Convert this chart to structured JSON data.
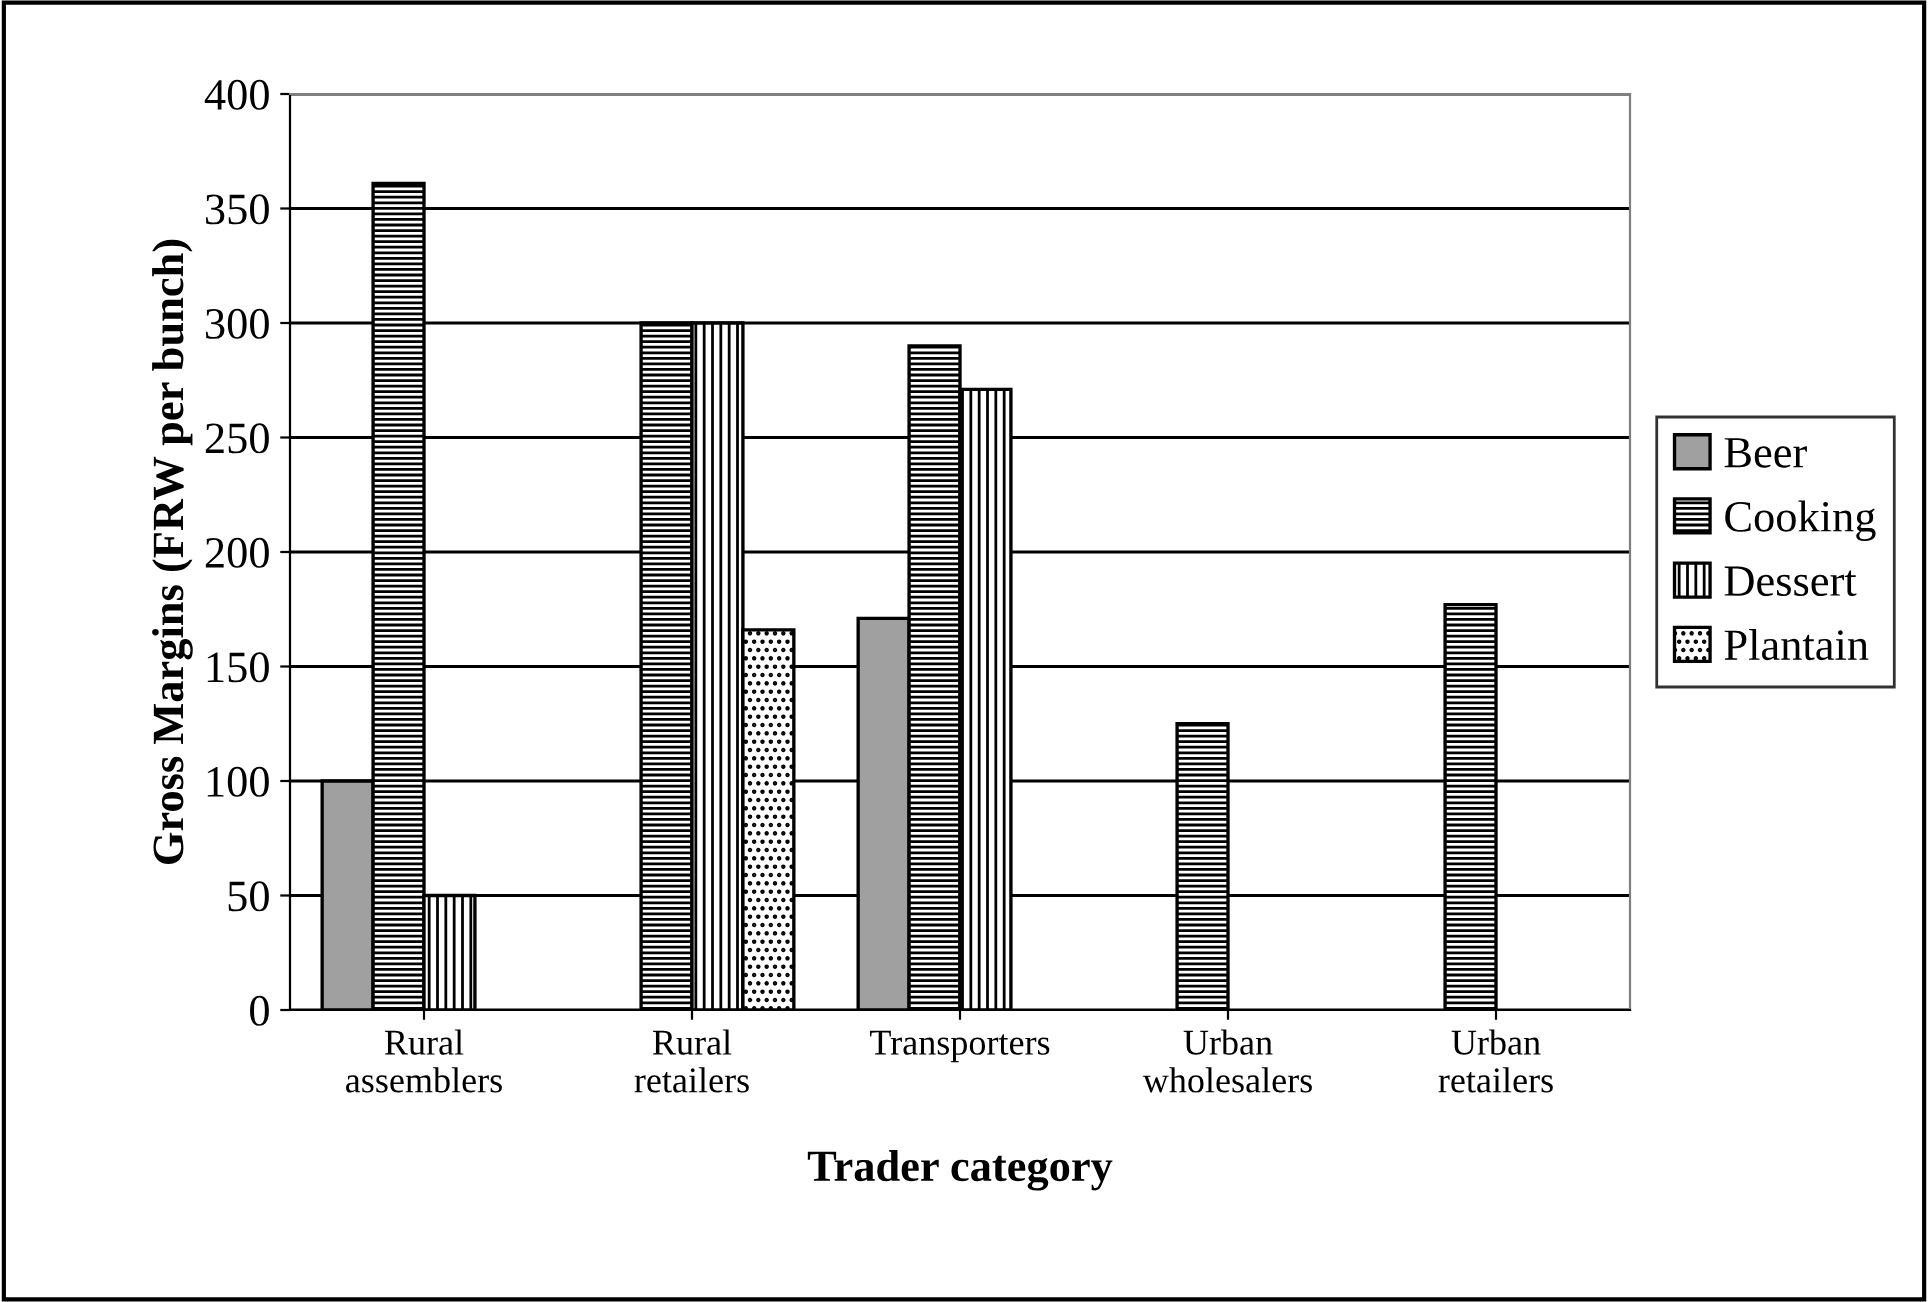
{
  "chart_data": {
    "type": "bar",
    "xlabel": "Trader category",
    "ylabel": "Gross Margins (FRW per bunch)",
    "categories": [
      "Rural\nassemblers",
      "Rural\nretailers",
      "Transporters",
      "Urban\nwholesalers",
      "Urban\nretailers"
    ],
    "series": [
      {
        "name": "Beer",
        "color": "#a0a0a0",
        "values": [
          100,
          null,
          171,
          null,
          null
        ]
      },
      {
        "name": "Cooking",
        "color": "#000000",
        "values": [
          361,
          300,
          290,
          125,
          177
        ]
      },
      {
        "name": "Dessert",
        "color": "#000000",
        "values": [
          50,
          300,
          271,
          null,
          null
        ]
      },
      {
        "name": "Plantain",
        "color": "#000000",
        "values": [
          null,
          166,
          null,
          null,
          null
        ]
      }
    ],
    "ylim": [
      0,
      400
    ],
    "yticks": [
      0,
      50,
      100,
      150,
      200,
      250,
      300,
      350,
      400
    ],
    "grid": "y",
    "legend": "right"
  }
}
